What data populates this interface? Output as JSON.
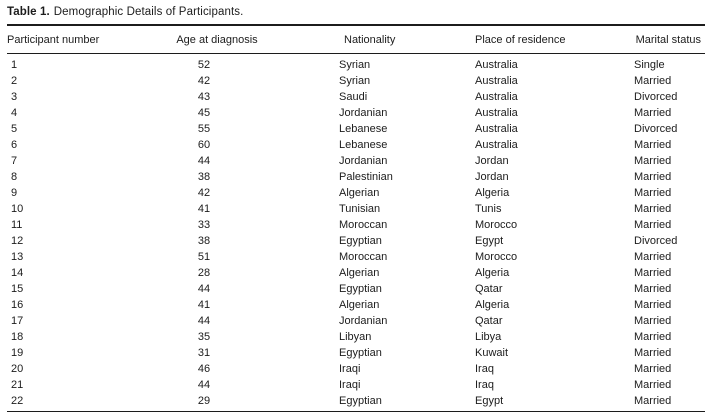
{
  "colors": {
    "text": "#1c1c1c",
    "rule": "#1c1c1c",
    "background": "#ffffff"
  },
  "table": {
    "label": "Table 1.",
    "caption": "Demographic Details of Participants.",
    "columns": [
      {
        "key": "participant-number",
        "label": "Participant number"
      },
      {
        "key": "age-at-diagnosis",
        "label": "Age at diagnosis"
      },
      {
        "key": "nationality",
        "label": "Nationality"
      },
      {
        "key": "place-of-residence",
        "label": "Place of residence"
      },
      {
        "key": "marital-status",
        "label": "Marital status"
      }
    ],
    "rows": [
      [
        "1",
        "52",
        "Syrian",
        "Australia",
        "Single"
      ],
      [
        "2",
        "42",
        "Syrian",
        "Australia",
        "Married"
      ],
      [
        "3",
        "43",
        "Saudi",
        "Australia",
        "Divorced"
      ],
      [
        "4",
        "45",
        "Jordanian",
        "Australia",
        "Married"
      ],
      [
        "5",
        "55",
        "Lebanese",
        "Australia",
        "Divorced"
      ],
      [
        "6",
        "60",
        "Lebanese",
        "Australia",
        "Married"
      ],
      [
        "7",
        "44",
        "Jordanian",
        "Jordan",
        "Married"
      ],
      [
        "8",
        "38",
        "Palestinian",
        "Jordan",
        "Married"
      ],
      [
        "9",
        "42",
        "Algerian",
        "Algeria",
        "Married"
      ],
      [
        "10",
        "41",
        "Tunisian",
        "Tunis",
        "Married"
      ],
      [
        "11",
        "33",
        "Moroccan",
        "Morocco",
        "Married"
      ],
      [
        "12",
        "38",
        "Egyptian",
        "Egypt",
        "Divorced"
      ],
      [
        "13",
        "51",
        "Moroccan",
        "Morocco",
        "Married"
      ],
      [
        "14",
        "28",
        "Algerian",
        "Algeria",
        "Married"
      ],
      [
        "15",
        "44",
        "Egyptian",
        "Qatar",
        "Married"
      ],
      [
        "16",
        "41",
        "Algerian",
        "Algeria",
        "Married"
      ],
      [
        "17",
        "44",
        "Jordanian",
        "Qatar",
        "Married"
      ],
      [
        "18",
        "35",
        "Libyan",
        "Libya",
        "Married"
      ],
      [
        "19",
        "31",
        "Egyptian",
        "Kuwait",
        "Married"
      ],
      [
        "20",
        "46",
        "Iraqi",
        "Iraq",
        "Married"
      ],
      [
        "21",
        "44",
        "Iraqi",
        "Iraq",
        "Married"
      ],
      [
        "22",
        "29",
        "Egyptian",
        "Egypt",
        "Married"
      ]
    ]
  }
}
